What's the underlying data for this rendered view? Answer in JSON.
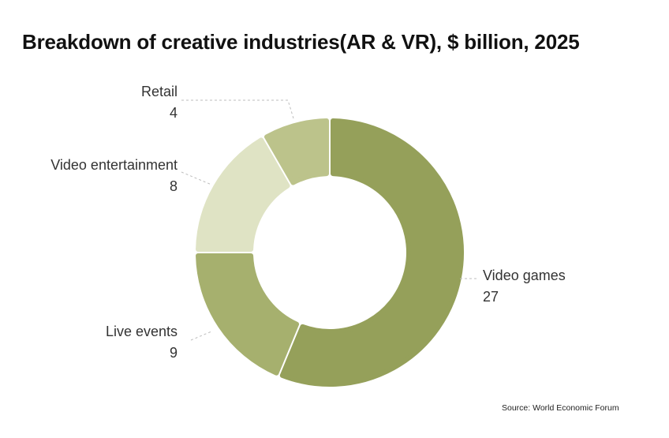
{
  "title": "Breakdown of creative industries(AR & VR), $ billion, 2025",
  "source": "Source: World Economic Forum",
  "chart_data": {
    "type": "pie",
    "variant": "donut",
    "title": "Breakdown of creative industries(AR & VR), $ billion, 2025",
    "unit": "$ billion",
    "start_angle_deg": 0,
    "direction": "clockwise",
    "slices": [
      {
        "label": "Video games",
        "value": 27,
        "color": "#95a05a"
      },
      {
        "label": "Live events",
        "value": 9,
        "color": "#a6b06e"
      },
      {
        "label": "Video entertainment",
        "value": 8,
        "color": "#dfe3c4"
      },
      {
        "label": "Retail",
        "value": 4,
        "color": "#bcc38b"
      }
    ]
  }
}
